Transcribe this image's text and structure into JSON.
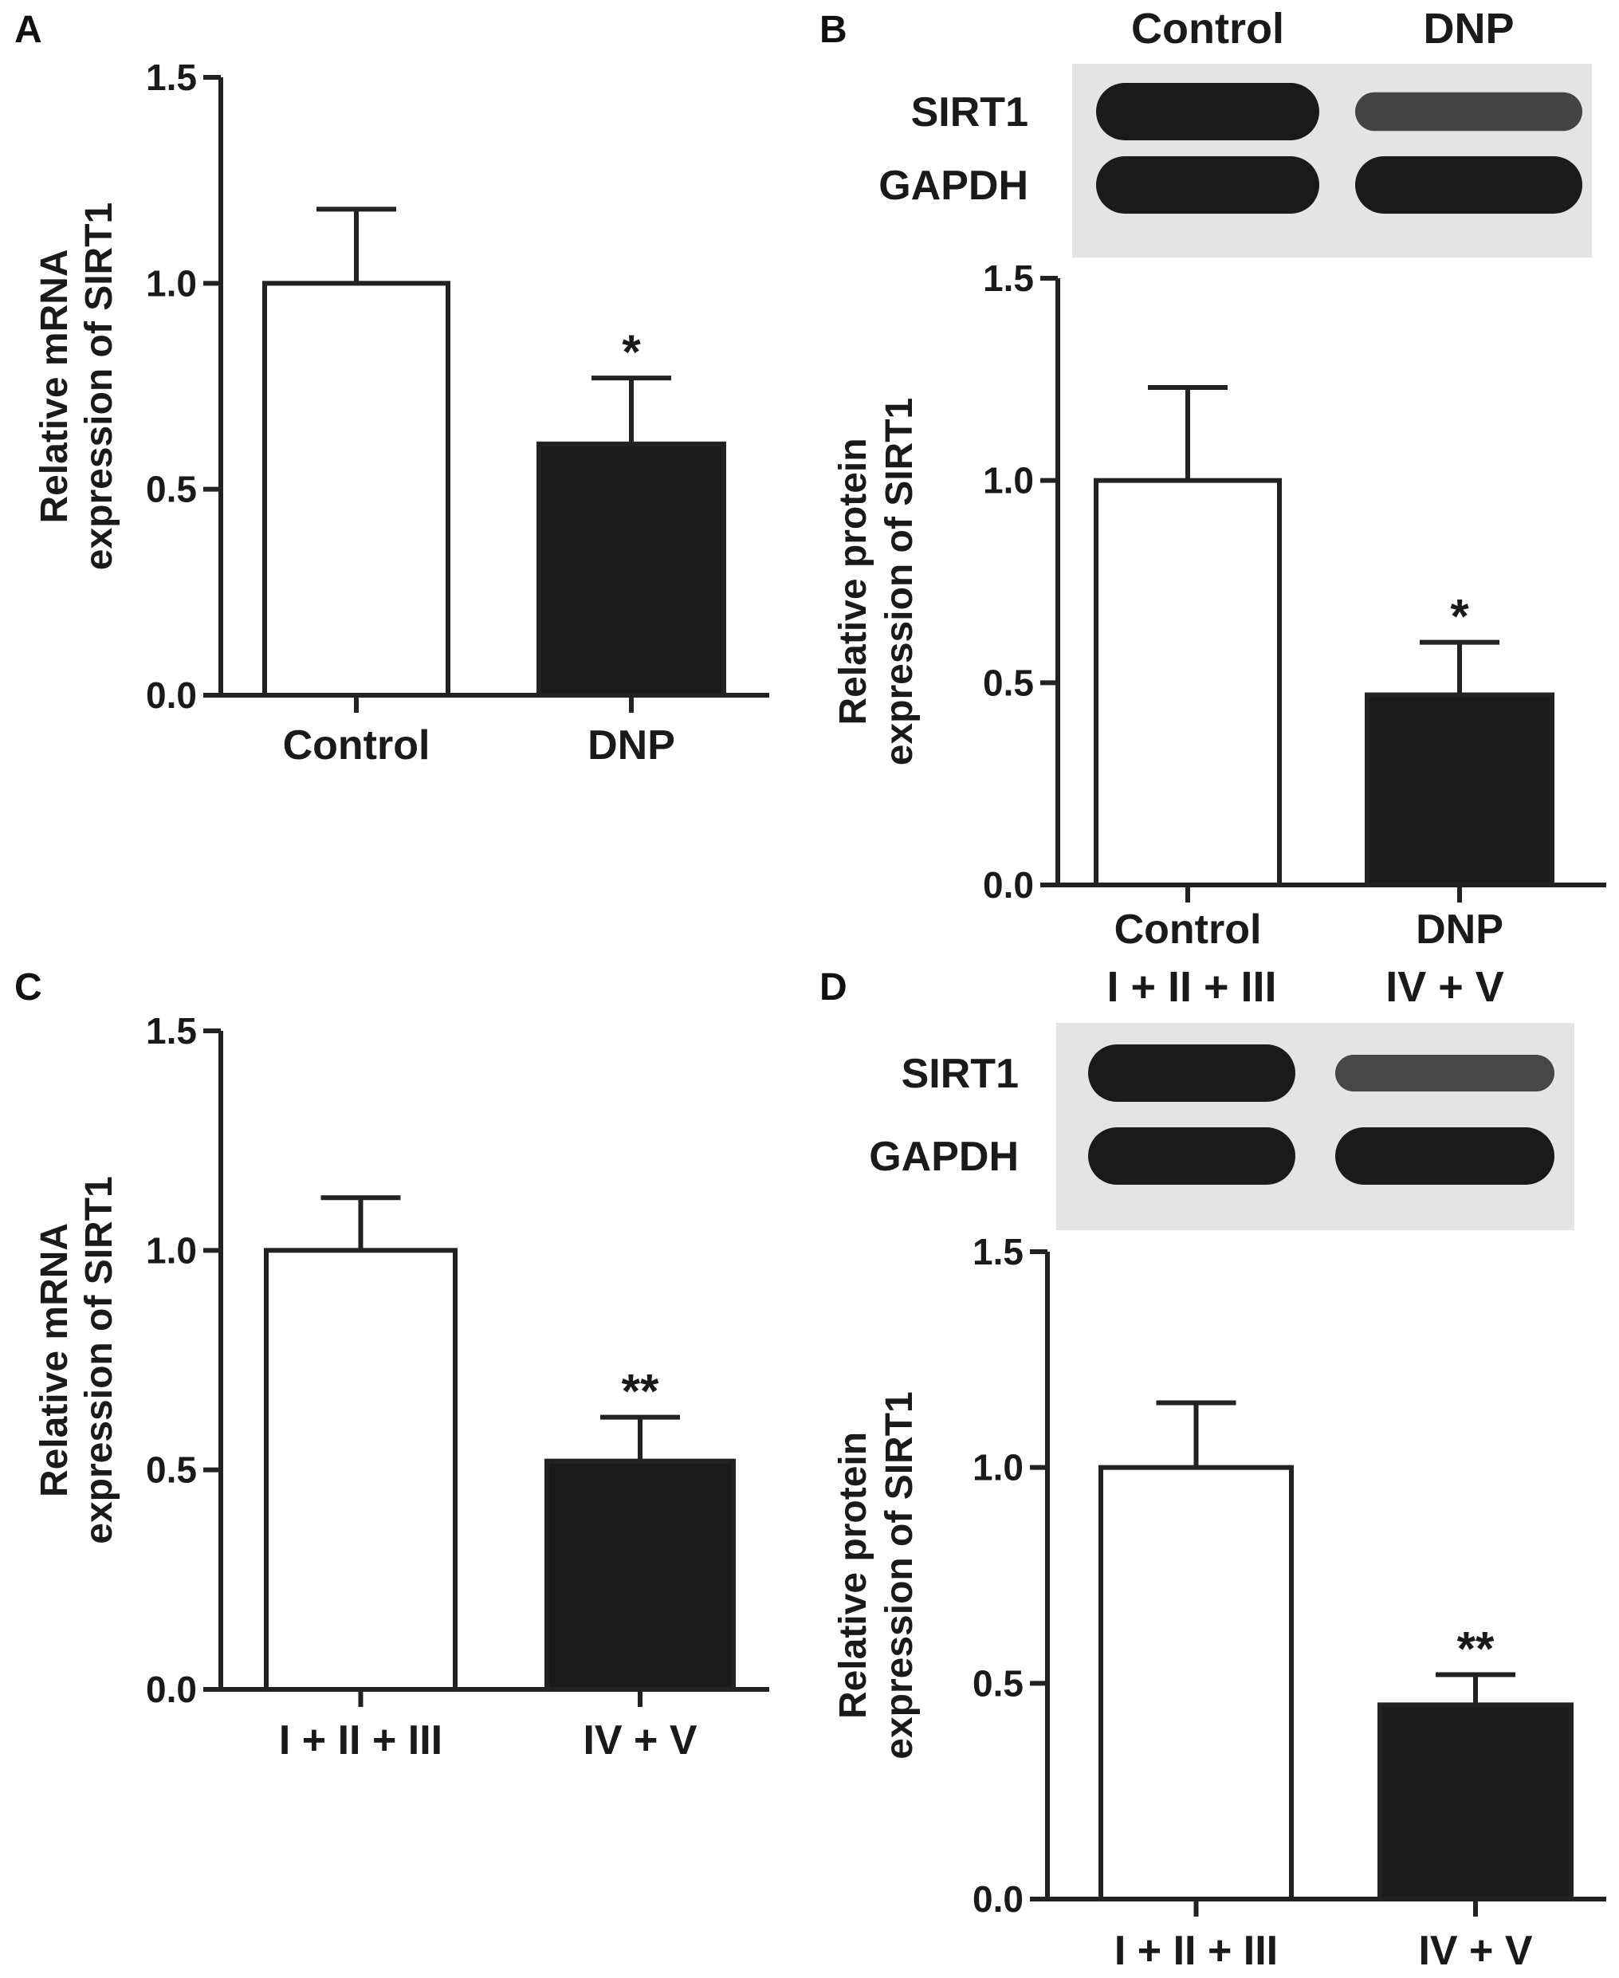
{
  "panels": [
    {
      "letter": "A",
      "blot": null,
      "chart_data": {
        "type": "bar",
        "categories": [
          "Control",
          "DNP"
        ],
        "values": [
          1.0,
          0.61
        ],
        "errors": [
          0.18,
          0.16
        ],
        "annotations": [
          "",
          "*"
        ],
        "bar_colors": [
          "#ffffff",
          "#1a1a1a"
        ],
        "ylabel_lines": [
          "Relative mRNA",
          "expression of SIRT1"
        ],
        "yticks": [
          "0.0",
          "0.5",
          "1.0",
          "1.5"
        ],
        "ylim": [
          0,
          1.5
        ],
        "grid": false
      }
    },
    {
      "letter": "B",
      "blot": {
        "lanes": [
          "Control",
          "DNP"
        ],
        "rows": [
          "SIRT1",
          "GAPDH"
        ],
        "band_intensity": [
          [
            1.0,
            0.55
          ],
          [
            1.0,
            1.0
          ]
        ]
      },
      "chart_data": {
        "type": "bar",
        "categories": [
          "Control",
          "DNP"
        ],
        "values": [
          1.0,
          0.47
        ],
        "errors": [
          0.23,
          0.13
        ],
        "annotations": [
          "",
          "*"
        ],
        "bar_colors": [
          "#ffffff",
          "#1a1a1a"
        ],
        "ylabel_lines": [
          "Relative protein",
          "expression of SIRT1"
        ],
        "yticks": [
          "0.0",
          "0.5",
          "1.0",
          "1.5"
        ],
        "ylim": [
          0,
          1.5
        ],
        "grid": false
      }
    },
    {
      "letter": "C",
      "blot": null,
      "chart_data": {
        "type": "bar",
        "categories": [
          "I + II + III",
          "IV + V"
        ],
        "values": [
          1.0,
          0.52
        ],
        "errors": [
          0.12,
          0.1
        ],
        "annotations": [
          "",
          "**"
        ],
        "bar_colors": [
          "#ffffff",
          "#1a1a1a"
        ],
        "ylabel_lines": [
          "Relative mRNA",
          "expression of SIRT1"
        ],
        "yticks": [
          "0.0",
          "0.5",
          "1.0",
          "1.5"
        ],
        "ylim": [
          0,
          1.5
        ],
        "grid": false
      }
    },
    {
      "letter": "D",
      "blot": {
        "lanes": [
          "I + II + III",
          "IV + V"
        ],
        "rows": [
          "SIRT1",
          "GAPDH"
        ],
        "band_intensity": [
          [
            1.0,
            0.5
          ],
          [
            1.0,
            1.0
          ]
        ]
      },
      "chart_data": {
        "type": "bar",
        "categories": [
          "I + II + III",
          "IV + V"
        ],
        "values": [
          1.0,
          0.45
        ],
        "errors": [
          0.15,
          0.07
        ],
        "annotations": [
          "",
          "**"
        ],
        "bar_colors": [
          "#ffffff",
          "#1a1a1a"
        ],
        "ylabel_lines": [
          "Relative protein",
          "expression of SIRT1"
        ],
        "yticks": [
          "0.0",
          "0.5",
          "1.0",
          "1.5"
        ],
        "ylim": [
          0,
          1.5
        ],
        "grid": false
      }
    }
  ]
}
